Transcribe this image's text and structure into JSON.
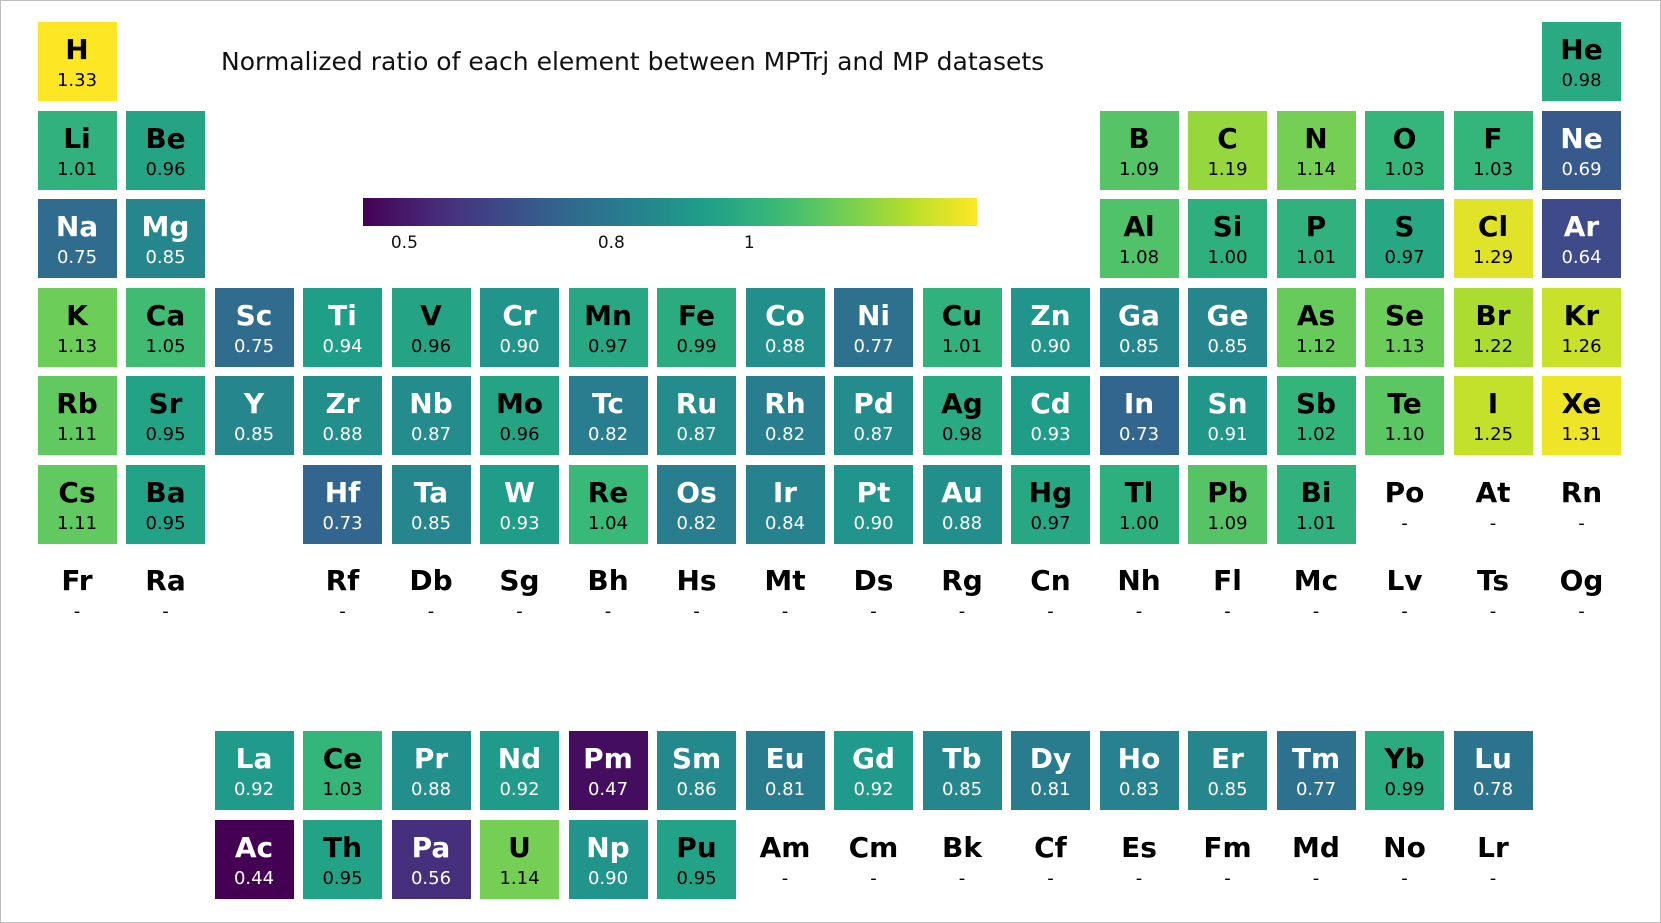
{
  "chart_data": {
    "type": "heatmap",
    "title": "Normalized ratio of each element between MPTrj and MP datasets",
    "colormap": "viridis",
    "colorbar": {
      "min": 0.44,
      "max": 1.33,
      "ticks": [
        {
          "value": 0.5,
          "label": "0.5"
        },
        {
          "value": 0.8,
          "label": "0.8"
        },
        {
          "value": 1.0,
          "label": "1"
        }
      ]
    },
    "missing_label": "-",
    "elements": [
      {
        "symbol": "H",
        "row": 1,
        "col": 1,
        "value": "1.33"
      },
      {
        "symbol": "He",
        "row": 1,
        "col": 18,
        "value": "0.98"
      },
      {
        "symbol": "Li",
        "row": 2,
        "col": 1,
        "value": "1.01"
      },
      {
        "symbol": "Be",
        "row": 2,
        "col": 2,
        "value": "0.96"
      },
      {
        "symbol": "B",
        "row": 2,
        "col": 13,
        "value": "1.09"
      },
      {
        "symbol": "C",
        "row": 2,
        "col": 14,
        "value": "1.19"
      },
      {
        "symbol": "N",
        "row": 2,
        "col": 15,
        "value": "1.14"
      },
      {
        "symbol": "O",
        "row": 2,
        "col": 16,
        "value": "1.03"
      },
      {
        "symbol": "F",
        "row": 2,
        "col": 17,
        "value": "1.03"
      },
      {
        "symbol": "Ne",
        "row": 2,
        "col": 18,
        "value": "0.69"
      },
      {
        "symbol": "Na",
        "row": 3,
        "col": 1,
        "value": "0.75"
      },
      {
        "symbol": "Mg",
        "row": 3,
        "col": 2,
        "value": "0.85"
      },
      {
        "symbol": "Al",
        "row": 3,
        "col": 13,
        "value": "1.08"
      },
      {
        "symbol": "Si",
        "row": 3,
        "col": 14,
        "value": "1.00"
      },
      {
        "symbol": "P",
        "row": 3,
        "col": 15,
        "value": "1.01"
      },
      {
        "symbol": "S",
        "row": 3,
        "col": 16,
        "value": "0.97"
      },
      {
        "symbol": "Cl",
        "row": 3,
        "col": 17,
        "value": "1.29"
      },
      {
        "symbol": "Ar",
        "row": 3,
        "col": 18,
        "value": "0.64"
      },
      {
        "symbol": "K",
        "row": 4,
        "col": 1,
        "value": "1.13"
      },
      {
        "symbol": "Ca",
        "row": 4,
        "col": 2,
        "value": "1.05"
      },
      {
        "symbol": "Sc",
        "row": 4,
        "col": 3,
        "value": "0.75"
      },
      {
        "symbol": "Ti",
        "row": 4,
        "col": 4,
        "value": "0.94"
      },
      {
        "symbol": "V",
        "row": 4,
        "col": 5,
        "value": "0.96"
      },
      {
        "symbol": "Cr",
        "row": 4,
        "col": 6,
        "value": "0.90"
      },
      {
        "symbol": "Mn",
        "row": 4,
        "col": 7,
        "value": "0.97"
      },
      {
        "symbol": "Fe",
        "row": 4,
        "col": 8,
        "value": "0.99"
      },
      {
        "symbol": "Co",
        "row": 4,
        "col": 9,
        "value": "0.88"
      },
      {
        "symbol": "Ni",
        "row": 4,
        "col": 10,
        "value": "0.77"
      },
      {
        "symbol": "Cu",
        "row": 4,
        "col": 11,
        "value": "1.01"
      },
      {
        "symbol": "Zn",
        "row": 4,
        "col": 12,
        "value": "0.90"
      },
      {
        "symbol": "Ga",
        "row": 4,
        "col": 13,
        "value": "0.85"
      },
      {
        "symbol": "Ge",
        "row": 4,
        "col": 14,
        "value": "0.85"
      },
      {
        "symbol": "As",
        "row": 4,
        "col": 15,
        "value": "1.12"
      },
      {
        "symbol": "Se",
        "row": 4,
        "col": 16,
        "value": "1.13"
      },
      {
        "symbol": "Br",
        "row": 4,
        "col": 17,
        "value": "1.22"
      },
      {
        "symbol": "Kr",
        "row": 4,
        "col": 18,
        "value": "1.26"
      },
      {
        "symbol": "Rb",
        "row": 5,
        "col": 1,
        "value": "1.11"
      },
      {
        "symbol": "Sr",
        "row": 5,
        "col": 2,
        "value": "0.95"
      },
      {
        "symbol": "Y",
        "row": 5,
        "col": 3,
        "value": "0.85"
      },
      {
        "symbol": "Zr",
        "row": 5,
        "col": 4,
        "value": "0.88"
      },
      {
        "symbol": "Nb",
        "row": 5,
        "col": 5,
        "value": "0.87"
      },
      {
        "symbol": "Mo",
        "row": 5,
        "col": 6,
        "value": "0.96"
      },
      {
        "symbol": "Tc",
        "row": 5,
        "col": 7,
        "value": "0.82"
      },
      {
        "symbol": "Ru",
        "row": 5,
        "col": 8,
        "value": "0.87"
      },
      {
        "symbol": "Rh",
        "row": 5,
        "col": 9,
        "value": "0.82"
      },
      {
        "symbol": "Pd",
        "row": 5,
        "col": 10,
        "value": "0.87"
      },
      {
        "symbol": "Ag",
        "row": 5,
        "col": 11,
        "value": "0.98"
      },
      {
        "symbol": "Cd",
        "row": 5,
        "col": 12,
        "value": "0.93"
      },
      {
        "symbol": "In",
        "row": 5,
        "col": 13,
        "value": "0.73"
      },
      {
        "symbol": "Sn",
        "row": 5,
        "col": 14,
        "value": "0.91"
      },
      {
        "symbol": "Sb",
        "row": 5,
        "col": 15,
        "value": "1.02"
      },
      {
        "symbol": "Te",
        "row": 5,
        "col": 16,
        "value": "1.10"
      },
      {
        "symbol": "I",
        "row": 5,
        "col": 17,
        "value": "1.25"
      },
      {
        "symbol": "Xe",
        "row": 5,
        "col": 18,
        "value": "1.31"
      },
      {
        "symbol": "Cs",
        "row": 6,
        "col": 1,
        "value": "1.11"
      },
      {
        "symbol": "Ba",
        "row": 6,
        "col": 2,
        "value": "0.95"
      },
      {
        "symbol": "Hf",
        "row": 6,
        "col": 4,
        "value": "0.73"
      },
      {
        "symbol": "Ta",
        "row": 6,
        "col": 5,
        "value": "0.85"
      },
      {
        "symbol": "W",
        "row": 6,
        "col": 6,
        "value": "0.93"
      },
      {
        "symbol": "Re",
        "row": 6,
        "col": 7,
        "value": "1.04"
      },
      {
        "symbol": "Os",
        "row": 6,
        "col": 8,
        "value": "0.82"
      },
      {
        "symbol": "Ir",
        "row": 6,
        "col": 9,
        "value": "0.84"
      },
      {
        "symbol": "Pt",
        "row": 6,
        "col": 10,
        "value": "0.90"
      },
      {
        "symbol": "Au",
        "row": 6,
        "col": 11,
        "value": "0.88"
      },
      {
        "symbol": "Hg",
        "row": 6,
        "col": 12,
        "value": "0.97"
      },
      {
        "symbol": "Tl",
        "row": 6,
        "col": 13,
        "value": "1.00"
      },
      {
        "symbol": "Pb",
        "row": 6,
        "col": 14,
        "value": "1.09"
      },
      {
        "symbol": "Bi",
        "row": 6,
        "col": 15,
        "value": "1.01"
      },
      {
        "symbol": "Po",
        "row": 6,
        "col": 16,
        "value": null
      },
      {
        "symbol": "At",
        "row": 6,
        "col": 17,
        "value": null
      },
      {
        "symbol": "Rn",
        "row": 6,
        "col": 18,
        "value": null
      },
      {
        "symbol": "Fr",
        "row": 7,
        "col": 1,
        "value": null
      },
      {
        "symbol": "Ra",
        "row": 7,
        "col": 2,
        "value": null
      },
      {
        "symbol": "Rf",
        "row": 7,
        "col": 4,
        "value": null
      },
      {
        "symbol": "Db",
        "row": 7,
        "col": 5,
        "value": null
      },
      {
        "symbol": "Sg",
        "row": 7,
        "col": 6,
        "value": null
      },
      {
        "symbol": "Bh",
        "row": 7,
        "col": 7,
        "value": null
      },
      {
        "symbol": "Hs",
        "row": 7,
        "col": 8,
        "value": null
      },
      {
        "symbol": "Mt",
        "row": 7,
        "col": 9,
        "value": null
      },
      {
        "symbol": "Ds",
        "row": 7,
        "col": 10,
        "value": null
      },
      {
        "symbol": "Rg",
        "row": 7,
        "col": 11,
        "value": null
      },
      {
        "symbol": "Cn",
        "row": 7,
        "col": 12,
        "value": null
      },
      {
        "symbol": "Nh",
        "row": 7,
        "col": 13,
        "value": null
      },
      {
        "symbol": "Fl",
        "row": 7,
        "col": 14,
        "value": null
      },
      {
        "symbol": "Mc",
        "row": 7,
        "col": 15,
        "value": null
      },
      {
        "symbol": "Lv",
        "row": 7,
        "col": 16,
        "value": null
      },
      {
        "symbol": "Ts",
        "row": 7,
        "col": 17,
        "value": null
      },
      {
        "symbol": "Og",
        "row": 7,
        "col": 18,
        "value": null
      },
      {
        "symbol": "La",
        "row": 9,
        "col": 3,
        "value": "0.92"
      },
      {
        "symbol": "Ce",
        "row": 9,
        "col": 4,
        "value": "1.03"
      },
      {
        "symbol": "Pr",
        "row": 9,
        "col": 5,
        "value": "0.88"
      },
      {
        "symbol": "Nd",
        "row": 9,
        "col": 6,
        "value": "0.92"
      },
      {
        "symbol": "Pm",
        "row": 9,
        "col": 7,
        "value": "0.47"
      },
      {
        "symbol": "Sm",
        "row": 9,
        "col": 8,
        "value": "0.86"
      },
      {
        "symbol": "Eu",
        "row": 9,
        "col": 9,
        "value": "0.81"
      },
      {
        "symbol": "Gd",
        "row": 9,
        "col": 10,
        "value": "0.92"
      },
      {
        "symbol": "Tb",
        "row": 9,
        "col": 11,
        "value": "0.85"
      },
      {
        "symbol": "Dy",
        "row": 9,
        "col": 12,
        "value": "0.81"
      },
      {
        "symbol": "Ho",
        "row": 9,
        "col": 13,
        "value": "0.83"
      },
      {
        "symbol": "Er",
        "row": 9,
        "col": 14,
        "value": "0.85"
      },
      {
        "symbol": "Tm",
        "row": 9,
        "col": 15,
        "value": "0.77"
      },
      {
        "symbol": "Yb",
        "row": 9,
        "col": 16,
        "value": "0.99"
      },
      {
        "symbol": "Lu",
        "row": 9,
        "col": 17,
        "value": "0.78"
      },
      {
        "symbol": "Ac",
        "row": 10,
        "col": 3,
        "value": "0.44"
      },
      {
        "symbol": "Th",
        "row": 10,
        "col": 4,
        "value": "0.95"
      },
      {
        "symbol": "Pa",
        "row": 10,
        "col": 5,
        "value": "0.56"
      },
      {
        "symbol": "U",
        "row": 10,
        "col": 6,
        "value": "1.14"
      },
      {
        "symbol": "Np",
        "row": 10,
        "col": 7,
        "value": "0.90"
      },
      {
        "symbol": "Pu",
        "row": 10,
        "col": 8,
        "value": "0.95"
      },
      {
        "symbol": "Am",
        "row": 10,
        "col": 9,
        "value": null
      },
      {
        "symbol": "Cm",
        "row": 10,
        "col": 10,
        "value": null
      },
      {
        "symbol": "Bk",
        "row": 10,
        "col": 11,
        "value": null
      },
      {
        "symbol": "Cf",
        "row": 10,
        "col": 12,
        "value": null
      },
      {
        "symbol": "Es",
        "row": 10,
        "col": 13,
        "value": null
      },
      {
        "symbol": "Fm",
        "row": 10,
        "col": 14,
        "value": null
      },
      {
        "symbol": "Md",
        "row": 10,
        "col": 15,
        "value": null
      },
      {
        "symbol": "No",
        "row": 10,
        "col": 16,
        "value": null
      },
      {
        "symbol": "Lr",
        "row": 10,
        "col": 17,
        "value": null
      }
    ]
  }
}
